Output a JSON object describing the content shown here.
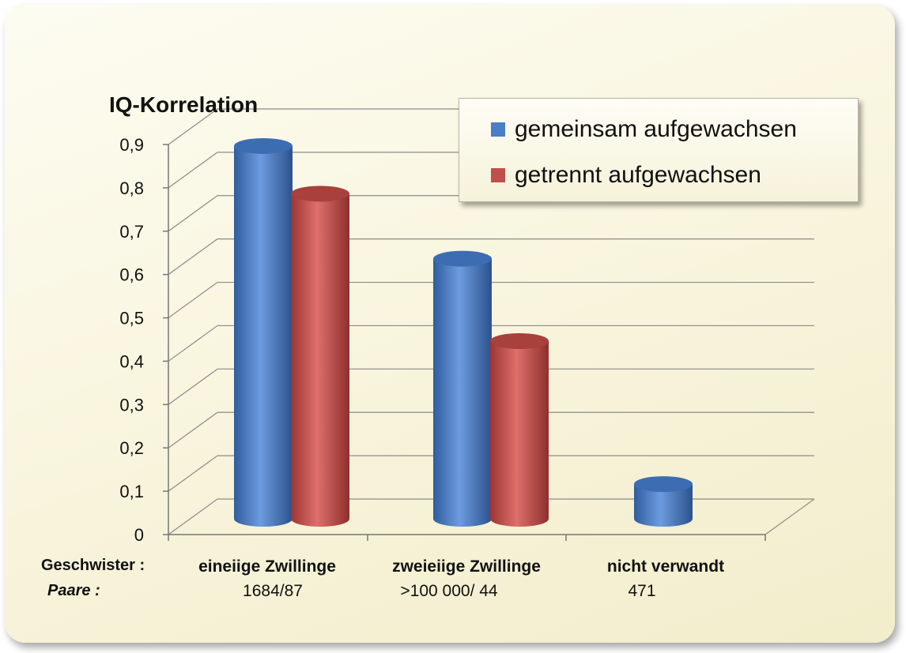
{
  "chart_data": {
    "type": "bar",
    "ylabel": "IQ-Korrelation",
    "ylim": [
      0,
      0.9
    ],
    "yticks": [
      "0",
      "0,1",
      "0,2",
      "0,3",
      "0,4",
      "0,5",
      "0,6",
      "0,7",
      "0,8",
      "0,9"
    ],
    "categories": [
      "eineiige Zwillinge",
      "zweieiige Zwillinge",
      "nicht verwandt"
    ],
    "pairs": [
      "1684/87",
      ">100 000/ 44",
      "471"
    ],
    "row_labels": {
      "siblings": "Geschwister :",
      "pairs": "Paare :"
    },
    "series": [
      {
        "name": "gemeinsam aufgewachsen",
        "color": "#4a7fc6",
        "values": [
          0.86,
          0.6,
          0.08
        ]
      },
      {
        "name": "getrennt aufgewachsen",
        "color": "#c0504d",
        "values": [
          0.75,
          0.41,
          null
        ]
      }
    ],
    "legend_position": "top-right",
    "grid": true
  }
}
